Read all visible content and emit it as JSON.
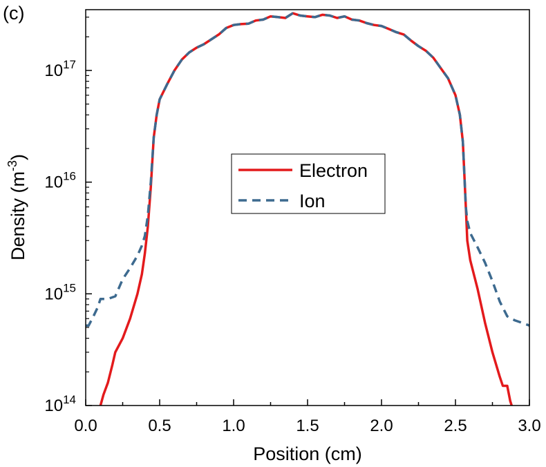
{
  "chart_data": {
    "type": "line",
    "panel_label": "(c)",
    "xlabel": "Position (cm)",
    "ylabel_base": "Density (m",
    "ylabel_exp": "-3",
    "ylabel_close": ")",
    "xlim": [
      0,
      3
    ],
    "ylim": [
      100000000000000.0,
      3.5e+17
    ],
    "yscale": "log",
    "x_ticks": [
      {
        "value": 0.0,
        "label": "0.0"
      },
      {
        "value": 0.5,
        "label": "0.5"
      },
      {
        "value": 1.0,
        "label": "1.0"
      },
      {
        "value": 1.5,
        "label": "1.5"
      },
      {
        "value": 2.0,
        "label": "2.0"
      },
      {
        "value": 2.5,
        "label": "2.5"
      },
      {
        "value": 3.0,
        "label": "3.0"
      }
    ],
    "y_ticks": [
      {
        "value": 100000000000000.0,
        "base": "10",
        "exp": "14"
      },
      {
        "value": 1000000000000000.0,
        "base": "10",
        "exp": "15"
      },
      {
        "value": 1e+16,
        "base": "10",
        "exp": "16"
      },
      {
        "value": 1e+17,
        "base": "10",
        "exp": "17"
      }
    ],
    "legend_position": "center",
    "series": [
      {
        "name": "Electron",
        "color": "#e31a1c",
        "style": "solid",
        "points": [
          [
            0.1,
            100000000000000.0
          ],
          [
            0.12,
            125000000000000.0
          ],
          [
            0.15,
            160000000000000.0
          ],
          [
            0.18,
            230000000000000.0
          ],
          [
            0.2,
            300000000000000.0
          ],
          [
            0.25,
            400000000000000.0
          ],
          [
            0.3,
            600000000000000.0
          ],
          [
            0.35,
            1000000000000000.0
          ],
          [
            0.38,
            1500000000000000.0
          ],
          [
            0.4,
            2300000000000000.0
          ],
          [
            0.42,
            4000000000000000.0
          ],
          [
            0.44,
            9000000000000000.0
          ],
          [
            0.46,
            2.5e+16
          ],
          [
            0.48,
            4e+16
          ],
          [
            0.5,
            5.5e+16
          ],
          [
            0.55,
            7.5e+16
          ],
          [
            0.6,
            1e+17
          ],
          [
            0.65,
            1.25e+17
          ],
          [
            0.7,
            1.45e+17
          ],
          [
            0.75,
            1.6e+17
          ],
          [
            0.8,
            1.72e+17
          ],
          [
            0.85,
            1.9e+17
          ],
          [
            0.9,
            2.1e+17
          ],
          [
            0.95,
            2.4e+17
          ],
          [
            1.0,
            2.55e+17
          ],
          [
            1.05,
            2.6e+17
          ],
          [
            1.1,
            2.62e+17
          ],
          [
            1.15,
            2.8e+17
          ],
          [
            1.2,
            2.85e+17
          ],
          [
            1.25,
            3.05e+17
          ],
          [
            1.3,
            3e+17
          ],
          [
            1.35,
            2.95e+17
          ],
          [
            1.4,
            3.25e+17
          ],
          [
            1.45,
            3.1e+17
          ],
          [
            1.5,
            3.05e+17
          ],
          [
            1.55,
            3e+17
          ],
          [
            1.6,
            3.15e+17
          ],
          [
            1.65,
            3.1e+17
          ],
          [
            1.7,
            2.95e+17
          ],
          [
            1.75,
            3.05e+17
          ],
          [
            1.8,
            2.85e+17
          ],
          [
            1.85,
            2.8e+17
          ],
          [
            1.9,
            2.65e+17
          ],
          [
            1.95,
            2.55e+17
          ],
          [
            2.0,
            2.5e+17
          ],
          [
            2.05,
            2.35e+17
          ],
          [
            2.1,
            2.2e+17
          ],
          [
            2.15,
            2.1e+17
          ],
          [
            2.2,
            1.85e+17
          ],
          [
            2.25,
            1.65e+17
          ],
          [
            2.3,
            1.5e+17
          ],
          [
            2.35,
            1.3e+17
          ],
          [
            2.4,
            1.05e+17
          ],
          [
            2.45,
            8.5e+16
          ],
          [
            2.5,
            6e+16
          ],
          [
            2.53,
            4e+16
          ],
          [
            2.55,
            2.3e+16
          ],
          [
            2.56,
            1.2e+16
          ],
          [
            2.57,
            6000000000000000.0
          ],
          [
            2.58,
            3000000000000000.0
          ],
          [
            2.6,
            2000000000000000.0
          ],
          [
            2.65,
            1100000000000000.0
          ],
          [
            2.7,
            550000000000000.0
          ],
          [
            2.75,
            300000000000000.0
          ],
          [
            2.8,
            180000000000000.0
          ],
          [
            2.82,
            150000000000000.0
          ],
          [
            2.85,
            150000000000000.0
          ],
          [
            2.87,
            110000000000000.0
          ],
          [
            2.88,
            100000000000000.0
          ]
        ]
      },
      {
        "name": "Ion",
        "color": "#3d6a8f",
        "style": "dashed",
        "points": [
          [
            0.0,
            520000000000000.0
          ],
          [
            0.02,
            520000000000000.0
          ],
          [
            0.05,
            620000000000000.0
          ],
          [
            0.08,
            750000000000000.0
          ],
          [
            0.1,
            900000000000000.0
          ],
          [
            0.15,
            900000000000000.0
          ],
          [
            0.2,
            950000000000000.0
          ],
          [
            0.25,
            1350000000000000.0
          ],
          [
            0.3,
            1700000000000000.0
          ],
          [
            0.35,
            2200000000000000.0
          ],
          [
            0.38,
            2700000000000000.0
          ],
          [
            0.4,
            3300000000000000.0
          ],
          [
            0.42,
            5000000000000000.0
          ],
          [
            0.44,
            1e+16
          ],
          [
            0.46,
            2.5e+16
          ],
          [
            0.48,
            4e+16
          ],
          [
            0.5,
            5.5e+16
          ],
          [
            0.55,
            7.5e+16
          ],
          [
            0.6,
            1e+17
          ],
          [
            0.65,
            1.25e+17
          ],
          [
            0.7,
            1.45e+17
          ],
          [
            0.75,
            1.6e+17
          ],
          [
            0.8,
            1.72e+17
          ],
          [
            0.85,
            1.9e+17
          ],
          [
            0.9,
            2.1e+17
          ],
          [
            0.95,
            2.4e+17
          ],
          [
            1.0,
            2.55e+17
          ],
          [
            1.05,
            2.6e+17
          ],
          [
            1.1,
            2.62e+17
          ],
          [
            1.15,
            2.8e+17
          ],
          [
            1.2,
            2.85e+17
          ],
          [
            1.25,
            3.05e+17
          ],
          [
            1.3,
            3e+17
          ],
          [
            1.35,
            2.95e+17
          ],
          [
            1.4,
            3.25e+17
          ],
          [
            1.45,
            3.1e+17
          ],
          [
            1.5,
            3.05e+17
          ],
          [
            1.55,
            3e+17
          ],
          [
            1.6,
            3.15e+17
          ],
          [
            1.65,
            3.1e+17
          ],
          [
            1.7,
            2.95e+17
          ],
          [
            1.75,
            3.05e+17
          ],
          [
            1.8,
            2.85e+17
          ],
          [
            1.85,
            2.8e+17
          ],
          [
            1.9,
            2.65e+17
          ],
          [
            1.95,
            2.55e+17
          ],
          [
            2.0,
            2.5e+17
          ],
          [
            2.05,
            2.35e+17
          ],
          [
            2.1,
            2.2e+17
          ],
          [
            2.15,
            2.1e+17
          ],
          [
            2.2,
            1.85e+17
          ],
          [
            2.25,
            1.65e+17
          ],
          [
            2.3,
            1.5e+17
          ],
          [
            2.35,
            1.3e+17
          ],
          [
            2.4,
            1.05e+17
          ],
          [
            2.45,
            8.5e+16
          ],
          [
            2.5,
            6e+16
          ],
          [
            2.53,
            4e+16
          ],
          [
            2.55,
            2.3e+16
          ],
          [
            2.56,
            1.2e+16
          ],
          [
            2.57,
            6000000000000000.0
          ],
          [
            2.58,
            4500000000000000.0
          ],
          [
            2.6,
            3500000000000000.0
          ],
          [
            2.65,
            2600000000000000.0
          ],
          [
            2.7,
            1900000000000000.0
          ],
          [
            2.75,
            1300000000000000.0
          ],
          [
            2.8,
            850000000000000.0
          ],
          [
            2.85,
            630000000000000.0
          ],
          [
            2.9,
            580000000000000.0
          ],
          [
            2.95,
            550000000000000.0
          ],
          [
            3.0,
            520000000000000.0
          ]
        ]
      }
    ]
  }
}
